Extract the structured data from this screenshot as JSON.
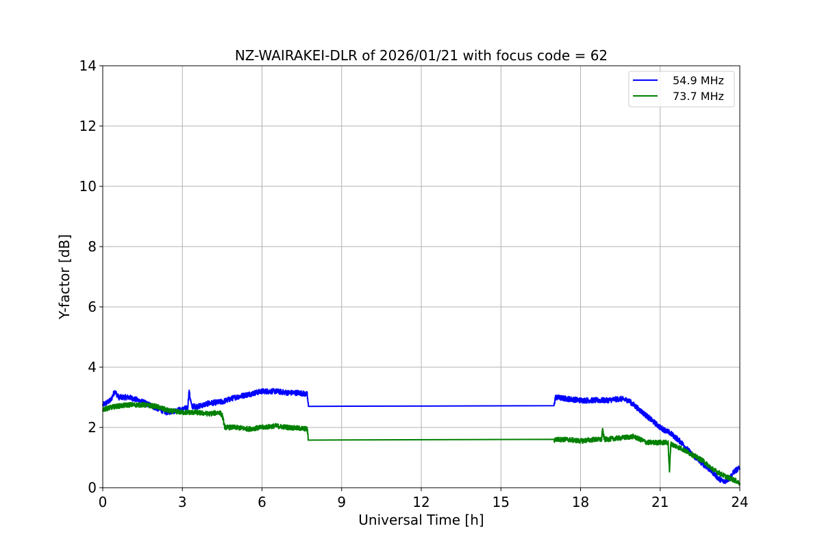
{
  "chart_data": {
    "type": "line",
    "title": "NZ-WAIRAKEI-DLR of 2026/01/21 with focus code = 62",
    "xlabel": "Universal Time [h]",
    "ylabel": "Y-factor [dB]",
    "xlim": [
      0,
      24
    ],
    "ylim": [
      0,
      14
    ],
    "xticks": [
      0,
      3,
      6,
      9,
      12,
      15,
      18,
      21,
      24
    ],
    "yticks": [
      0,
      2,
      4,
      6,
      8,
      10,
      12,
      14
    ],
    "grid": true,
    "legend_position": "top-right",
    "series": [
      {
        "name": "54.9 MHz",
        "color": "#0000ff",
        "noise": 0.09,
        "x": [
          0,
          0.3,
          0.45,
          0.6,
          1.0,
          1.5,
          2.0,
          2.4,
          3.0,
          3.2,
          3.25,
          3.35,
          3.6,
          4.0,
          4.5,
          5.0,
          5.5,
          6.0,
          6.5,
          7.0,
          7.4,
          7.7,
          7.75,
          17.0,
          17.05,
          17.5,
          18.0,
          18.5,
          19.0,
          19.5,
          19.8,
          20.2,
          20.6,
          21.0,
          21.4,
          21.8,
          22.2,
          22.6,
          23.0,
          23.2,
          23.4,
          23.6,
          23.8,
          24.0
        ],
        "y": [
          2.75,
          2.9,
          3.2,
          3.0,
          3.0,
          2.85,
          2.65,
          2.5,
          2.6,
          2.65,
          3.2,
          2.7,
          2.7,
          2.8,
          2.85,
          3.0,
          3.1,
          3.2,
          3.2,
          3.15,
          3.15,
          3.1,
          2.7,
          2.72,
          3.0,
          2.95,
          2.9,
          2.9,
          2.9,
          2.95,
          2.9,
          2.6,
          2.3,
          2.0,
          1.8,
          1.5,
          1.1,
          0.8,
          0.5,
          0.3,
          0.2,
          0.3,
          0.55,
          0.65
        ]
      },
      {
        "name": "73.7 MHz",
        "color": "#008000",
        "noise": 0.08,
        "x": [
          0,
          0.5,
          1.0,
          1.5,
          2.0,
          2.5,
          3.0,
          3.5,
          4.0,
          4.4,
          4.5,
          4.6,
          5.0,
          5.5,
          6.0,
          6.5,
          7.0,
          7.7,
          7.75,
          17.0,
          17.05,
          17.5,
          18.0,
          18.5,
          18.8,
          18.82,
          18.9,
          19.5,
          20.0,
          20.5,
          21.0,
          21.3,
          21.35,
          21.4,
          21.8,
          22.2,
          22.6,
          23.0,
          23.4,
          23.8,
          24.0
        ],
        "y": [
          2.6,
          2.7,
          2.75,
          2.75,
          2.7,
          2.55,
          2.5,
          2.5,
          2.45,
          2.5,
          2.4,
          2.0,
          2.0,
          1.95,
          2.0,
          2.05,
          2.0,
          1.95,
          1.58,
          1.57,
          1.6,
          1.6,
          1.55,
          1.6,
          1.6,
          1.95,
          1.6,
          1.65,
          1.7,
          1.5,
          1.5,
          1.5,
          0.5,
          1.45,
          1.3,
          1.1,
          0.9,
          0.6,
          0.4,
          0.25,
          0.15
        ]
      }
    ]
  }
}
